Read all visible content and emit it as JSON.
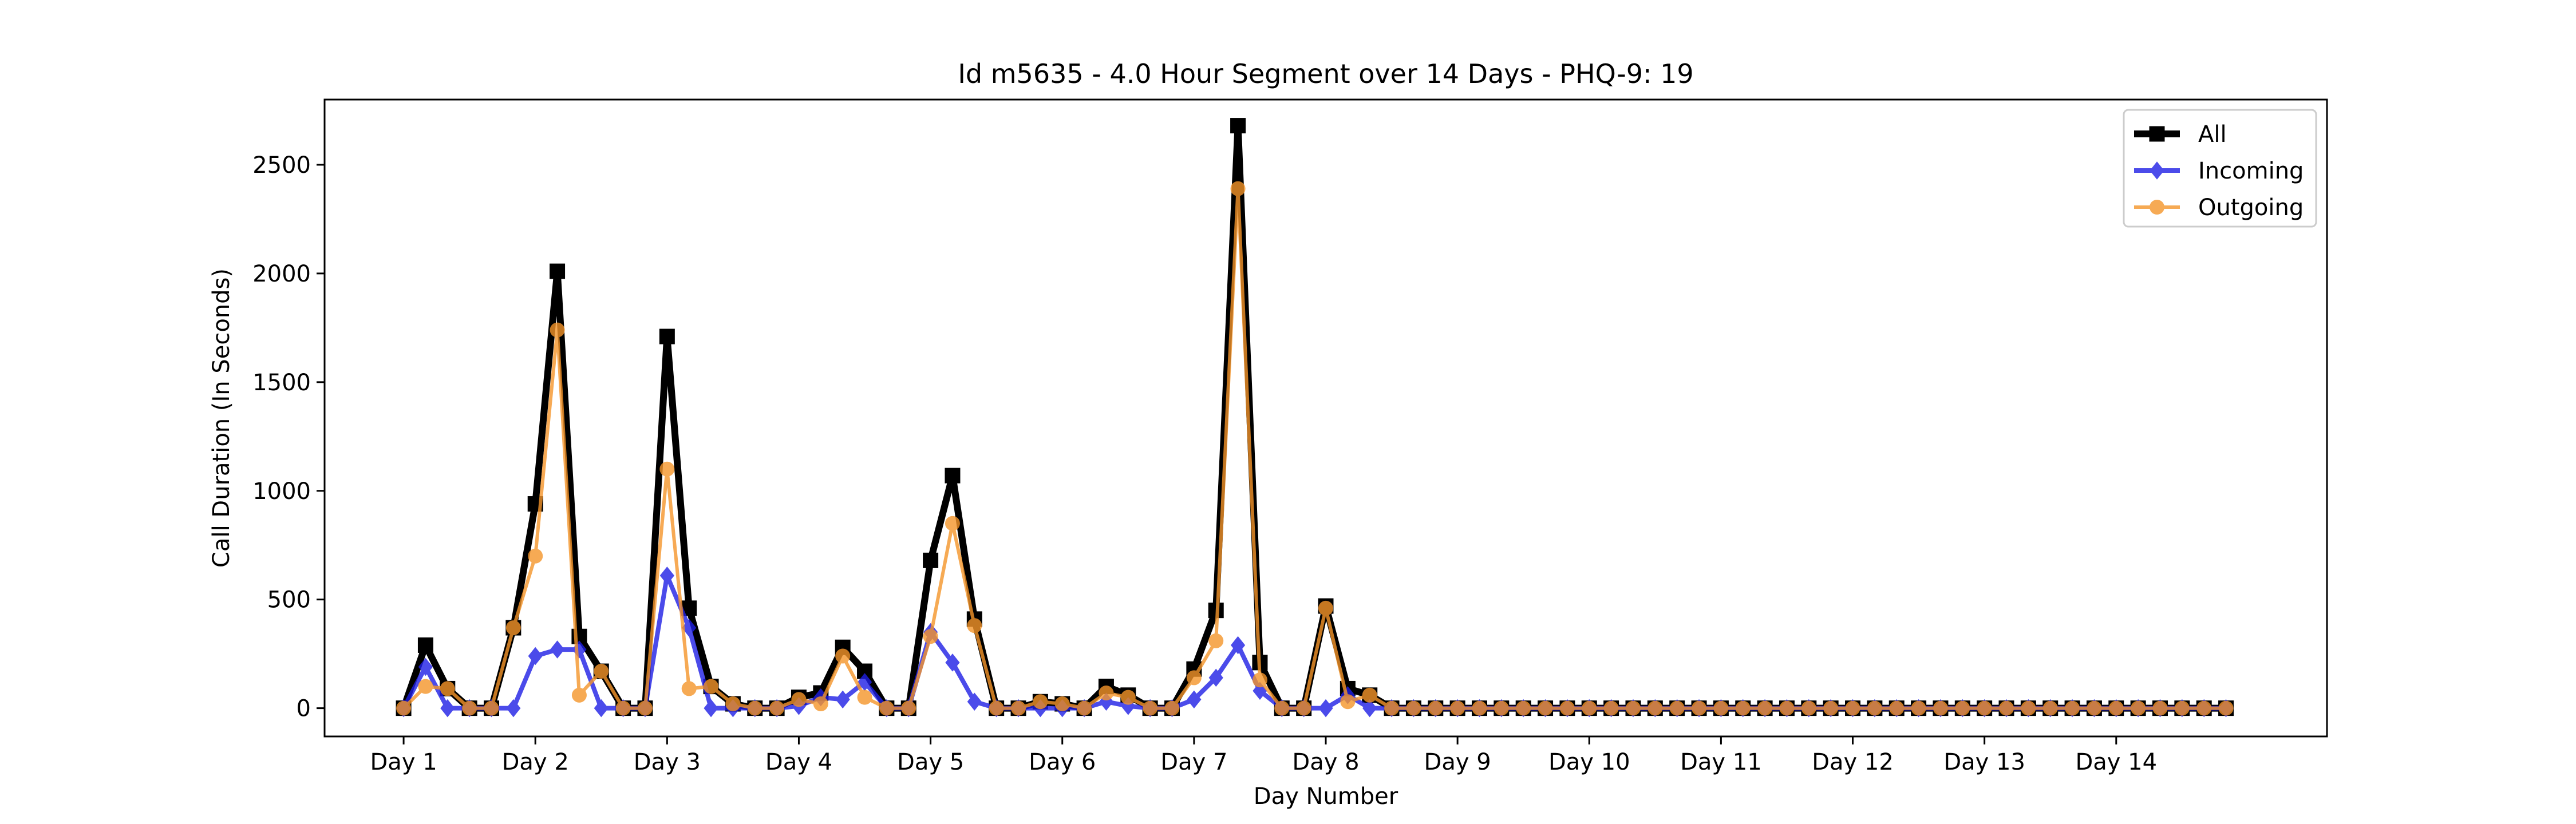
{
  "chart_data": {
    "type": "line",
    "title": "Id m5635 - 4.0 Hour Segment over 14 Days - PHQ-9: 19",
    "xlabel": "Day Number",
    "ylabel": "Call Duration (In Seconds)",
    "ylim": [
      -130,
      2800
    ],
    "xlim": [
      -3.6,
      87.6
    ],
    "yticks": [
      0,
      500,
      1000,
      1500,
      2000,
      2500
    ],
    "xtick_labels": [
      "Day 1",
      "Day 2",
      "Day 3",
      "Day 4",
      "Day 5",
      "Day 6",
      "Day 7",
      "Day 8",
      "Day 9",
      "Day 10",
      "Day 11",
      "Day 12",
      "Day 13",
      "Day 14"
    ],
    "xtick_positions": [
      0,
      6,
      12,
      18,
      24,
      30,
      36,
      42,
      48,
      54,
      60,
      66,
      72,
      78
    ],
    "grid": false,
    "legend_position": "top-right",
    "series": [
      {
        "name": "All",
        "color": "#000000",
        "marker": "square",
        "values": [
          0,
          290,
          90,
          0,
          0,
          370,
          940,
          2010,
          330,
          170,
          0,
          0,
          1710,
          460,
          100,
          20,
          0,
          0,
          50,
          70,
          280,
          170,
          0,
          0,
          680,
          1070,
          410,
          0,
          0,
          30,
          20,
          0,
          100,
          60,
          0,
          0,
          180,
          450,
          2680,
          210,
          0,
          0,
          470,
          90,
          60,
          0,
          0,
          0,
          0,
          0,
          0,
          0,
          0,
          0,
          0,
          0,
          0,
          0,
          0,
          0,
          0,
          0,
          0,
          0,
          0,
          0,
          0,
          0,
          0,
          0,
          0,
          0,
          0,
          0,
          0,
          0,
          0,
          0,
          0,
          0,
          0,
          0,
          0,
          0
        ]
      },
      {
        "name": "Incoming",
        "color": "#1f1fe6",
        "marker": "diamond",
        "values": [
          0,
          190,
          0,
          0,
          0,
          0,
          240,
          270,
          270,
          0,
          0,
          0,
          610,
          370,
          0,
          0,
          0,
          0,
          10,
          50,
          40,
          120,
          0,
          0,
          350,
          210,
          30,
          0,
          0,
          0,
          0,
          0,
          30,
          10,
          0,
          0,
          40,
          140,
          290,
          80,
          0,
          0,
          0,
          60,
          0,
          0,
          0,
          0,
          0,
          0,
          0,
          0,
          0,
          0,
          0,
          0,
          0,
          0,
          0,
          0,
          0,
          0,
          0,
          0,
          0,
          0,
          0,
          0,
          0,
          0,
          0,
          0,
          0,
          0,
          0,
          0,
          0,
          0,
          0,
          0,
          0,
          0,
          0,
          0
        ]
      },
      {
        "name": "Outgoing",
        "color": "#f5952a",
        "marker": "circle",
        "values": [
          0,
          100,
          90,
          0,
          0,
          370,
          700,
          1740,
          60,
          170,
          0,
          0,
          1100,
          90,
          100,
          20,
          0,
          0,
          40,
          20,
          240,
          50,
          0,
          0,
          330,
          850,
          380,
          0,
          0,
          30,
          20,
          0,
          70,
          50,
          0,
          0,
          140,
          310,
          2390,
          130,
          0,
          0,
          460,
          30,
          60,
          0,
          0,
          0,
          0,
          0,
          0,
          0,
          0,
          0,
          0,
          0,
          0,
          0,
          0,
          0,
          0,
          0,
          0,
          0,
          0,
          0,
          0,
          0,
          0,
          0,
          0,
          0,
          0,
          0,
          0,
          0,
          0,
          0,
          0,
          0,
          0,
          0,
          0,
          0
        ]
      }
    ]
  }
}
